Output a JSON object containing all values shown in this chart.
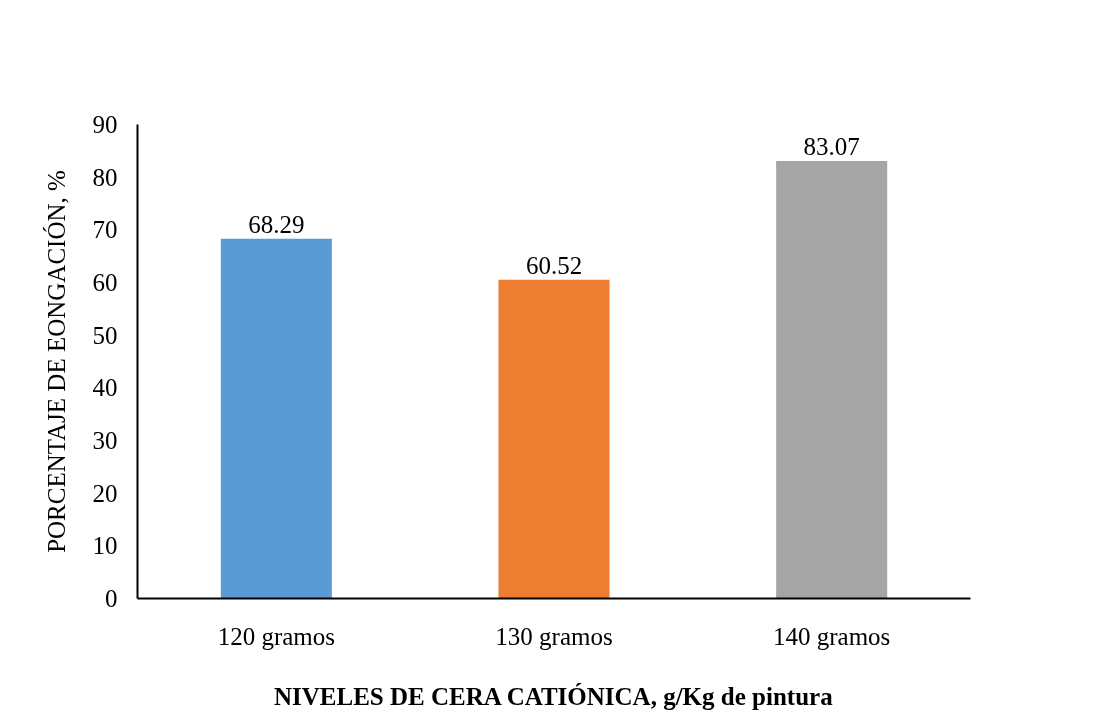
{
  "chart_data": {
    "type": "bar",
    "xlabel": "NIVELES DE CERA CATIÓNICA, g/Kg de pintura",
    "ylabel": "PORCENTAJE DE EONGACIÓN, %",
    "categories": [
      "120 gramos",
      "130 gramos",
      "140 gramos"
    ],
    "values": [
      68.29,
      60.52,
      83.07
    ],
    "colors": [
      "#5b9bd5",
      "#ed7d31",
      "#a5a5a5"
    ],
    "ylim": [
      0,
      90
    ],
    "yticks": [
      0,
      10,
      20,
      30,
      40,
      50,
      60,
      70,
      80,
      90
    ],
    "data_labels": true
  }
}
